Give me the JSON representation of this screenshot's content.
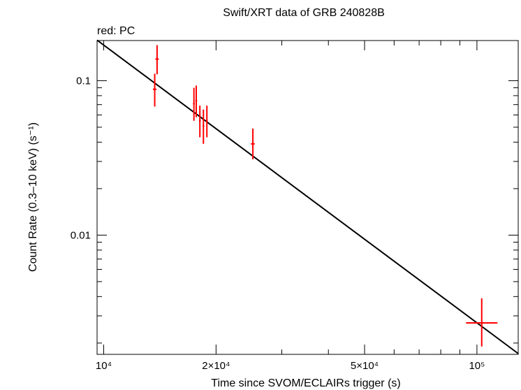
{
  "chart_data": {
    "type": "scatter",
    "title": "Swift/XRT data of GRB 240828B",
    "subtitle": "red: PC",
    "xlabel": "Time since SVOM/ECLAIRs trigger (s)",
    "ylabel": "Count Rate (0.3–10 keV) (s⁻¹)",
    "xscale": "log",
    "yscale": "log",
    "xlim": [
      9600,
      129000
    ],
    "ylim": [
      0.00169,
      0.182
    ],
    "grid": false,
    "x_ticks": [
      {
        "value": 10000,
        "label": "10⁴"
      },
      {
        "value": 20000,
        "label": "2×10⁴"
      },
      {
        "value": 50000,
        "label": "5×10⁴"
      },
      {
        "value": 100000,
        "label": "10⁵"
      }
    ],
    "y_ticks": [
      {
        "value": 0.1,
        "label": "0.1"
      },
      {
        "value": 0.01,
        "label": "0.01"
      }
    ],
    "series": [
      {
        "name": "PC",
        "color": "#ff0000",
        "points": [
          {
            "x": 13700,
            "xerr": [
              150,
              150
            ],
            "y": 0.088,
            "yerr": [
              0.02,
              0.023
            ]
          },
          {
            "x": 13900,
            "xerr": [
              150,
              150
            ],
            "y": 0.138,
            "yerr": [
              0.028,
              0.032
            ]
          },
          {
            "x": 17450,
            "xerr": [
              100,
              100
            ],
            "y": 0.071,
            "yerr": [
              0.016,
              0.019
            ]
          },
          {
            "x": 17700,
            "xerr": [
              100,
              100
            ],
            "y": 0.074,
            "yerr": [
              0.016,
              0.019
            ]
          },
          {
            "x": 18100,
            "xerr": [
              100,
              100
            ],
            "y": 0.055,
            "yerr": [
              0.012,
              0.014
            ]
          },
          {
            "x": 18500,
            "xerr": [
              100,
              100
            ],
            "y": 0.051,
            "yerr": [
              0.012,
              0.014
            ]
          },
          {
            "x": 18900,
            "xerr": [
              100,
              100
            ],
            "y": 0.055,
            "yerr": [
              0.012,
              0.014
            ]
          },
          {
            "x": 25100,
            "xerr": [
              300,
              300
            ],
            "y": 0.039,
            "yerr": [
              0.008,
              0.01
            ]
          },
          {
            "x": 103000,
            "xerr": [
              9500,
              10500
            ],
            "y": 0.0027,
            "yerr": [
              0.0008,
              0.0012
            ]
          }
        ]
      }
    ],
    "model": {
      "type": "power-law",
      "color": "#000000",
      "points": [
        {
          "x": 9600,
          "y": 0.183
        },
        {
          "x": 129000,
          "y": 0.00171
        }
      ]
    }
  }
}
